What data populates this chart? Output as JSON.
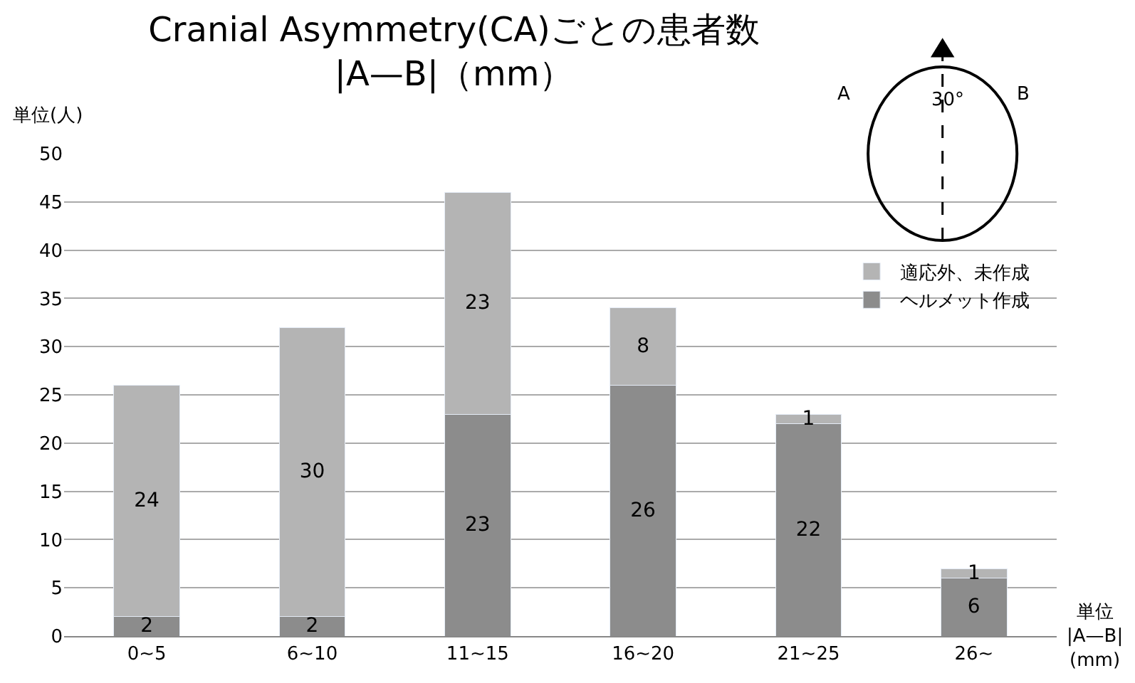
{
  "chart_data": {
    "type": "bar",
    "stacked": true,
    "title": "Cranial Asymmetry(CA)ごとの患者数\n|A—B|（mm）",
    "ylabel": "単位(人)",
    "xlabel": "単位\n|A—B|\n(mm)",
    "categories": [
      "0~5",
      "6~10",
      "11~15",
      "16~20",
      "21~25",
      "26~"
    ],
    "series": [
      {
        "name": "ヘルメット作成",
        "color": "#8c8c8c",
        "values": [
          2,
          2,
          23,
          26,
          22,
          6
        ]
      },
      {
        "name": "適応外、未作成",
        "color": "#b4b4b4",
        "values": [
          24,
          30,
          23,
          8,
          1,
          1
        ]
      }
    ],
    "ylim": [
      0,
      50
    ],
    "yticks": [
      0,
      5,
      10,
      15,
      20,
      25,
      30,
      35,
      40,
      45,
      50
    ],
    "grid": "y",
    "legend": "top right",
    "data_labels": true,
    "annotations": [
      "A",
      "B",
      "30°"
    ]
  }
}
